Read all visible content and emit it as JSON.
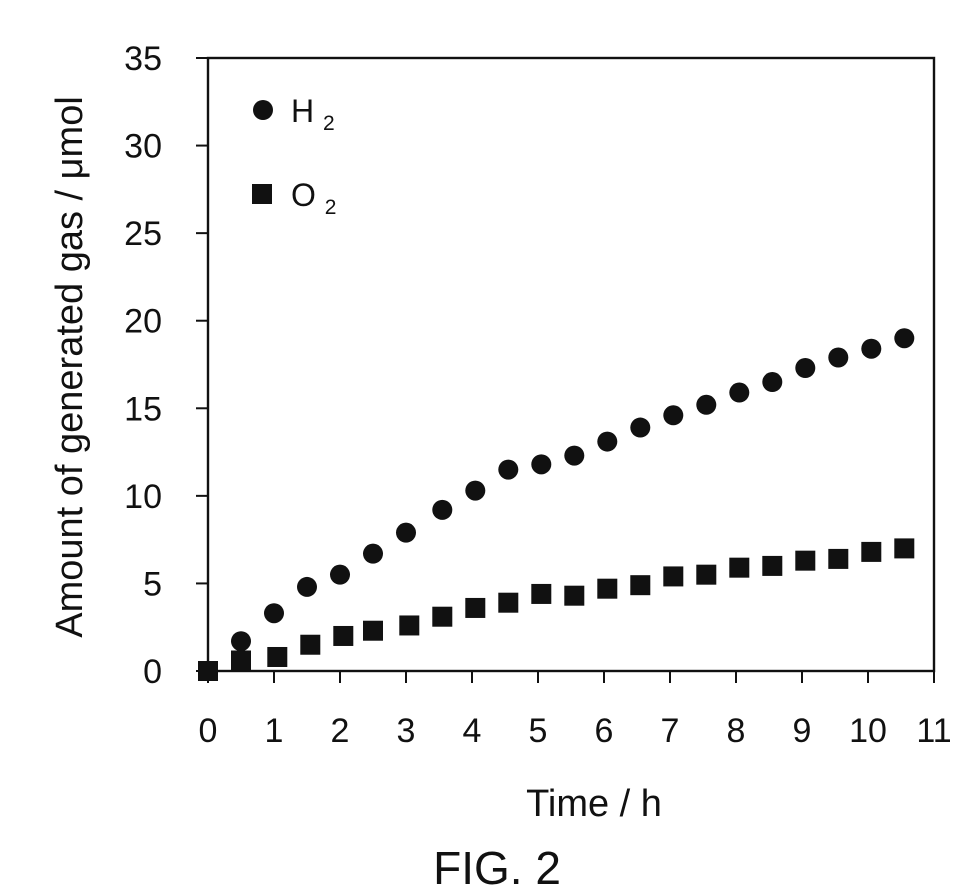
{
  "chart_data": {
    "type": "scatter",
    "figure_label": "FIG. 2",
    "xlabel": "Time / h",
    "ylabel": "Amount of generated gas / μmol",
    "xlim": [
      0,
      11
    ],
    "ylim": [
      0,
      35
    ],
    "xticks": [
      "0",
      "1",
      "2",
      "3",
      "4",
      "5",
      "6",
      "7",
      "8",
      "9",
      "10",
      "11"
    ],
    "yticks": [
      "0",
      "5",
      "10",
      "15",
      "20",
      "25",
      "30",
      "35"
    ],
    "grid": false,
    "legend_position": "top-left",
    "series": [
      {
        "name": "H2",
        "label_main": "H",
        "label_sub": "2",
        "marker": "circle",
        "color": "#111111",
        "x": [
          0,
          0.5,
          1.0,
          1.5,
          2.0,
          2.5,
          3.0,
          3.55,
          4.05,
          4.55,
          5.05,
          5.55,
          6.05,
          6.55,
          7.05,
          7.55,
          8.05,
          8.55,
          9.05,
          9.55,
          10.05,
          10.55
        ],
        "y": [
          0,
          1.7,
          3.3,
          4.8,
          5.5,
          6.7,
          7.9,
          9.2,
          10.3,
          11.5,
          11.8,
          12.3,
          13.1,
          13.9,
          14.6,
          15.2,
          15.9,
          16.5,
          17.3,
          17.9,
          18.4,
          19.0
        ]
      },
      {
        "name": "O2",
        "label_main": "O",
        "label_sub": "2",
        "marker": "square",
        "color": "#111111",
        "x": [
          0,
          0.5,
          1.05,
          1.55,
          2.05,
          2.5,
          3.05,
          3.55,
          4.05,
          4.55,
          5.05,
          5.55,
          6.05,
          6.55,
          7.05,
          7.55,
          8.05,
          8.55,
          9.05,
          9.55,
          10.05,
          10.55
        ],
        "y": [
          0,
          0.6,
          0.8,
          1.5,
          2.0,
          2.3,
          2.6,
          3.1,
          3.6,
          3.9,
          4.4,
          4.3,
          4.7,
          4.9,
          5.4,
          5.5,
          5.9,
          6.0,
          6.3,
          6.4,
          6.8,
          7.0
        ]
      }
    ]
  }
}
